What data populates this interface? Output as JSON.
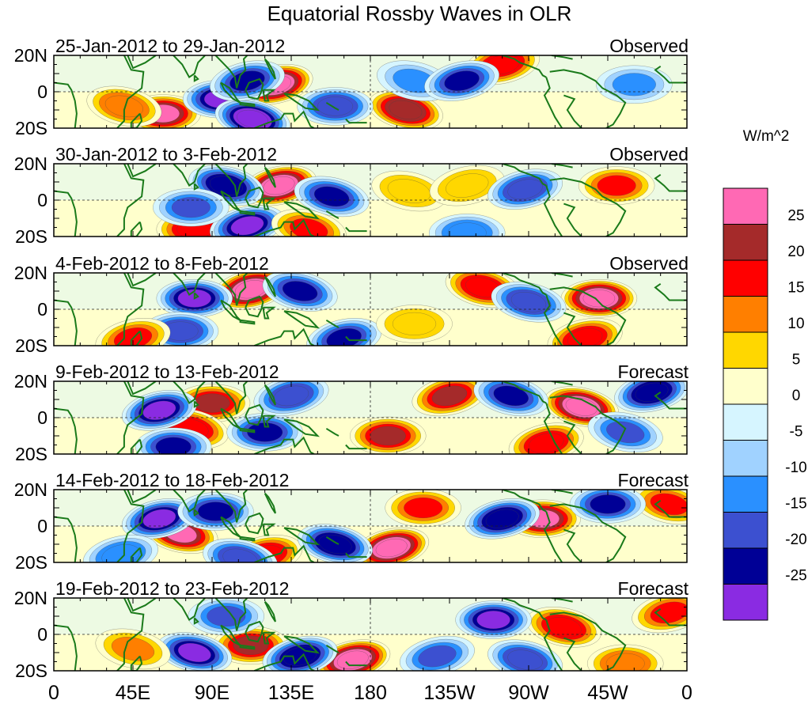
{
  "chart_data": {
    "type": "heatmap",
    "title": "Equatorial Rossby Waves in OLR",
    "units_label": "W/m^2",
    "x_range_deg_east": [
      0,
      360
    ],
    "y_range_deg": [
      -20,
      20
    ],
    "x_tick_labels": [
      "0",
      "45E",
      "90E",
      "135E",
      "180",
      "135W",
      "90W",
      "45W",
      "0"
    ],
    "x_tick_values_deg_east": [
      0,
      45,
      90,
      135,
      180,
      225,
      270,
      315,
      360
    ],
    "y_tick_labels": [
      "20N",
      "0",
      "20S"
    ],
    "y_tick_values_deg": [
      20,
      0,
      -20
    ],
    "colorbar": {
      "levels": [
        25,
        20,
        15,
        10,
        5,
        0,
        -5,
        -10,
        -15,
        -20,
        -25
      ],
      "level_labels": [
        "25",
        "20",
        "15",
        "10",
        "5",
        "0",
        "-5",
        "-10",
        "-15",
        "-20",
        "-25"
      ],
      "colors": [
        "#ff69b4",
        "#a52a2a",
        "#ff0000",
        "#ff7f00",
        "#ffd700",
        "#ffffcc",
        "#d6f5ff",
        "#a0d2ff",
        "#2a90ff",
        "#3c50d0",
        "#000096",
        "#8a2be2"
      ]
    },
    "panels": [
      {
        "period": "25-Jan-2012 to 29-Jan-2012",
        "status": "Observed",
        "anomalies": [
          {
            "lon": 126,
            "lat": 4,
            "value": 28
          },
          {
            "lon": 62,
            "lat": -12,
            "value": 26
          },
          {
            "lon": 200,
            "lat": -10,
            "value": 24
          },
          {
            "lon": 255,
            "lat": 15,
            "value": 18
          },
          {
            "lon": 95,
            "lat": -4,
            "value": -27
          },
          {
            "lon": 113,
            "lat": -15,
            "value": -28
          },
          {
            "lon": 110,
            "lat": 6,
            "value": -22
          },
          {
            "lon": 160,
            "lat": -8,
            "value": -18
          },
          {
            "lon": 205,
            "lat": 6,
            "value": -12
          },
          {
            "lon": 232,
            "lat": 6,
            "value": -20
          },
          {
            "lon": 330,
            "lat": 4,
            "value": -10
          },
          {
            "lon": 40,
            "lat": -8,
            "value": 14
          }
        ]
      },
      {
        "period": "30-Jan-2012 to 3-Feb-2012",
        "status": "Observed",
        "anomalies": [
          {
            "lon": 128,
            "lat": 8,
            "value": 28
          },
          {
            "lon": 80,
            "lat": -16,
            "value": 20
          },
          {
            "lon": 202,
            "lat": 5,
            "value": 10
          },
          {
            "lon": 235,
            "lat": 8,
            "value": 8
          },
          {
            "lon": 320,
            "lat": 8,
            "value": 16
          },
          {
            "lon": 98,
            "lat": 8,
            "value": -24
          },
          {
            "lon": 110,
            "lat": -14,
            "value": -26
          },
          {
            "lon": 78,
            "lat": -4,
            "value": -16
          },
          {
            "lon": 158,
            "lat": 2,
            "value": -20
          },
          {
            "lon": 268,
            "lat": 6,
            "value": -18
          },
          {
            "lon": 235,
            "lat": -18,
            "value": -14
          },
          {
            "lon": 145,
            "lat": -16,
            "value": 16
          }
        ]
      },
      {
        "period": "4-Feb-2012 to 8-Feb-2012",
        "status": "Observed",
        "anomalies": [
          {
            "lon": 112,
            "lat": 11,
            "value": 28
          },
          {
            "lon": 310,
            "lat": 6,
            "value": 28
          },
          {
            "lon": 244,
            "lat": 12,
            "value": 20
          },
          {
            "lon": 302,
            "lat": -16,
            "value": 18
          },
          {
            "lon": 80,
            "lat": 6,
            "value": -26
          },
          {
            "lon": 140,
            "lat": 10,
            "value": -22
          },
          {
            "lon": 165,
            "lat": -16,
            "value": -20
          },
          {
            "lon": 72,
            "lat": -12,
            "value": -18
          },
          {
            "lon": 270,
            "lat": 4,
            "value": -18
          },
          {
            "lon": 45,
            "lat": -16,
            "value": 16
          },
          {
            "lon": 205,
            "lat": -8,
            "value": 10
          }
        ]
      },
      {
        "period": "9-Feb-2012 to 13-Feb-2012",
        "status": "Forecast",
        "anomalies": [
          {
            "lon": 225,
            "lat": 12,
            "value": 22
          },
          {
            "lon": 190,
            "lat": -10,
            "value": 22
          },
          {
            "lon": 300,
            "lat": 6,
            "value": 28
          },
          {
            "lon": 280,
            "lat": -14,
            "value": 20
          },
          {
            "lon": 90,
            "lat": 8,
            "value": 22
          },
          {
            "lon": 78,
            "lat": -6,
            "value": 18
          },
          {
            "lon": 60,
            "lat": 4,
            "value": -26
          },
          {
            "lon": 120,
            "lat": -8,
            "value": -20
          },
          {
            "lon": 260,
            "lat": 12,
            "value": -22
          },
          {
            "lon": 340,
            "lat": 14,
            "value": -24
          },
          {
            "lon": 68,
            "lat": -16,
            "value": -20
          },
          {
            "lon": 325,
            "lat": -8,
            "value": -16
          },
          {
            "lon": 135,
            "lat": 12,
            "value": -18
          }
        ]
      },
      {
        "period": "14-Feb-2012 to 18-Feb-2012",
        "status": "Forecast",
        "anomalies": [
          {
            "lon": 192,
            "lat": -12,
            "value": 28
          },
          {
            "lon": 278,
            "lat": 4,
            "value": 26
          },
          {
            "lon": 72,
            "lat": -4,
            "value": 26
          },
          {
            "lon": 120,
            "lat": -16,
            "value": 20
          },
          {
            "lon": 210,
            "lat": 10,
            "value": 16
          },
          {
            "lon": 350,
            "lat": 12,
            "value": 16
          },
          {
            "lon": 60,
            "lat": 4,
            "value": -26
          },
          {
            "lon": 92,
            "lat": 8,
            "value": -22
          },
          {
            "lon": 160,
            "lat": -10,
            "value": -24
          },
          {
            "lon": 255,
            "lat": 4,
            "value": -24
          },
          {
            "lon": 315,
            "lat": 12,
            "value": -22
          },
          {
            "lon": 106,
            "lat": -18,
            "value": -18
          },
          {
            "lon": 38,
            "lat": -16,
            "value": -14
          }
        ]
      },
      {
        "period": "19-Feb-2012 to 23-Feb-2012",
        "status": "Forecast",
        "anomalies": [
          {
            "lon": 170,
            "lat": -14,
            "value": 28
          },
          {
            "lon": 112,
            "lat": -6,
            "value": 22
          },
          {
            "lon": 290,
            "lat": 4,
            "value": 20
          },
          {
            "lon": 350,
            "lat": 12,
            "value": 16
          },
          {
            "lon": 325,
            "lat": -16,
            "value": 14
          },
          {
            "lon": 80,
            "lat": -10,
            "value": -26
          },
          {
            "lon": 140,
            "lat": -12,
            "value": -24
          },
          {
            "lon": 250,
            "lat": 8,
            "value": -26
          },
          {
            "lon": 268,
            "lat": -14,
            "value": -18
          },
          {
            "lon": 218,
            "lat": -12,
            "value": -16
          },
          {
            "lon": 98,
            "lat": 10,
            "value": -16
          },
          {
            "lon": 45,
            "lat": -8,
            "value": 12
          }
        ]
      }
    ]
  }
}
